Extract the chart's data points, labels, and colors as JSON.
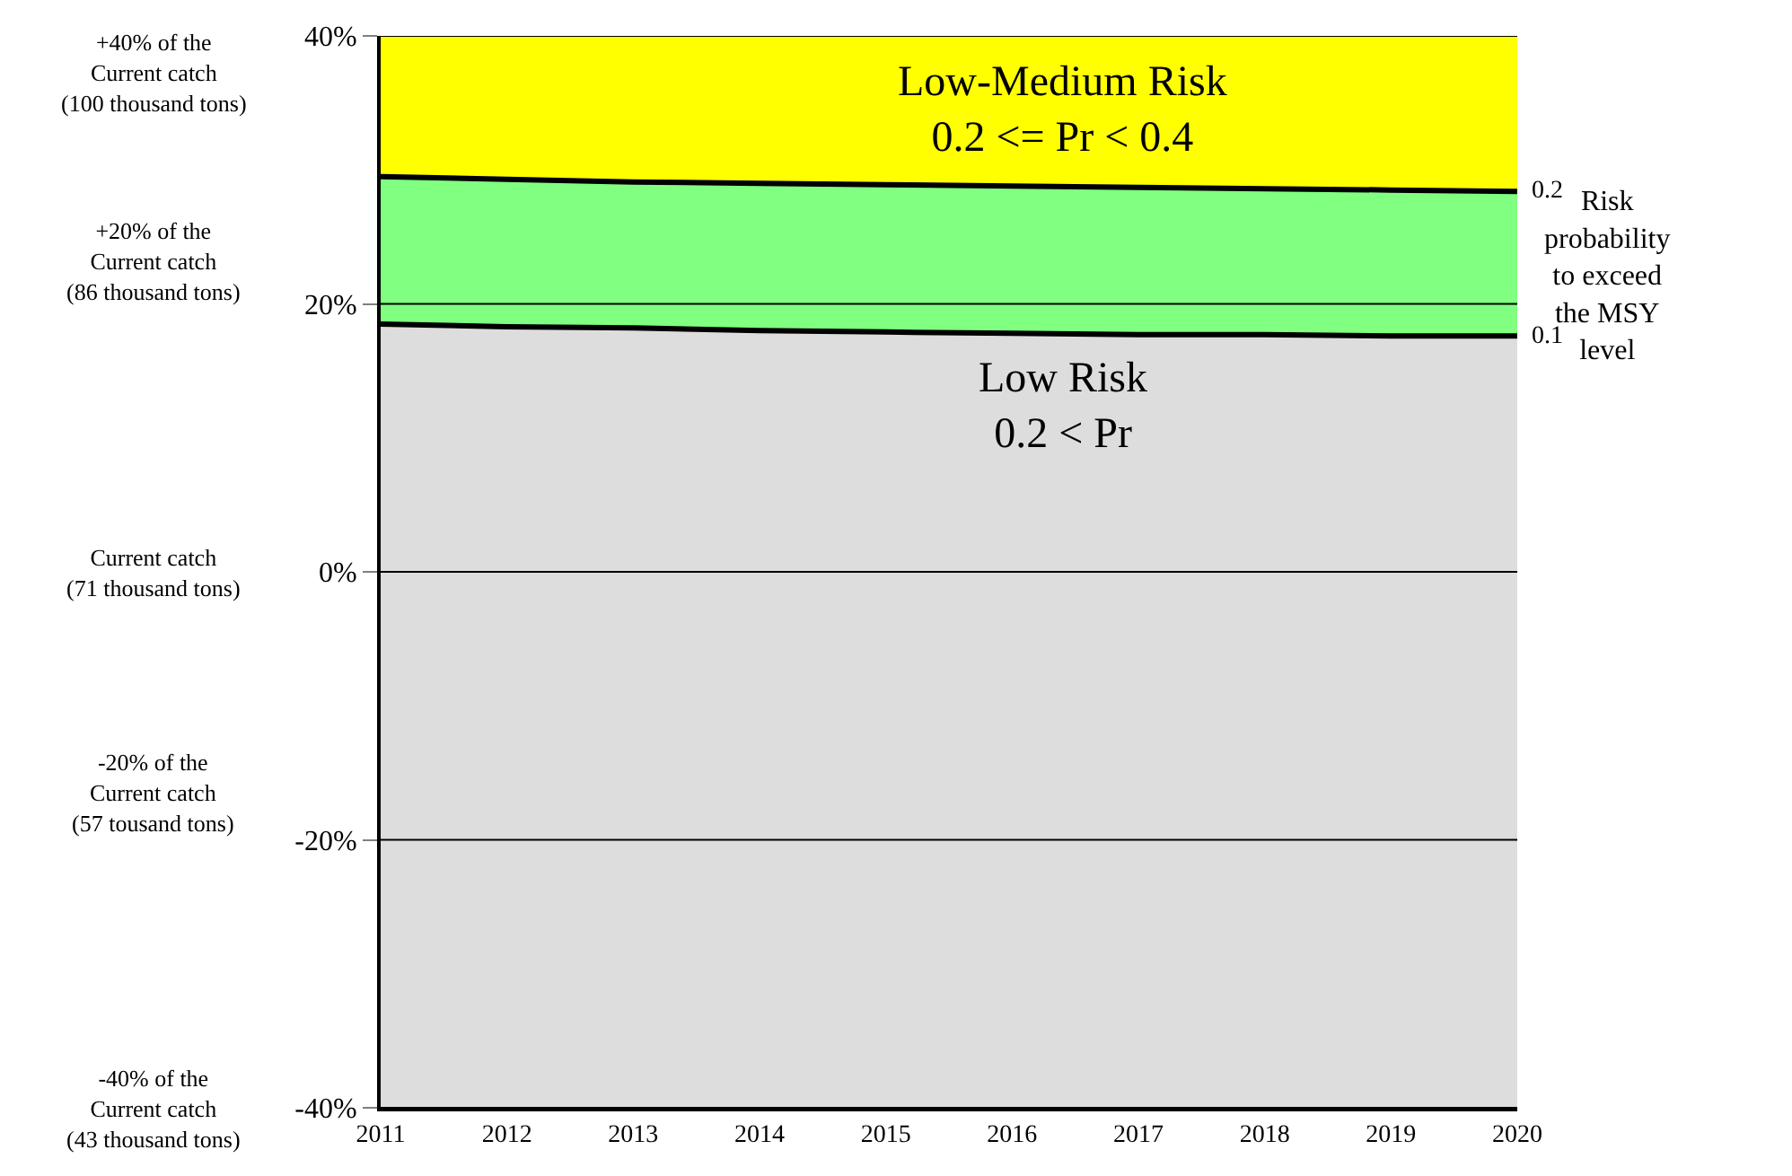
{
  "chart_data": {
    "type": "area",
    "x": [
      2011,
      2012,
      2013,
      2014,
      2015,
      2016,
      2017,
      2018,
      2019,
      2020
    ],
    "series": [
      {
        "name": "0.1",
        "color": "#dddddd",
        "values": [
          18.5,
          18.3,
          18.2,
          18.0,
          17.9,
          17.8,
          17.7,
          17.7,
          17.6,
          17.6
        ]
      },
      {
        "name": "0.2",
        "color": "#80ff80",
        "values": [
          29.5,
          29.3,
          29.1,
          29.0,
          28.9,
          28.8,
          28.7,
          28.6,
          28.5,
          28.4
        ]
      }
    ],
    "bands": [
      {
        "axis": "y",
        "from": 28.4,
        "to": 40,
        "color": "#ffff00"
      }
    ],
    "xlim": [
      2011,
      2020
    ],
    "xticks": [
      2011,
      2012,
      2013,
      2014,
      2015,
      2016,
      2017,
      2018,
      2019,
      2020
    ],
    "ylim": [
      -40,
      40
    ],
    "yticks": [
      {
        "value": -40,
        "label": "-40%"
      },
      {
        "value": -20,
        "label": "-20%"
      },
      {
        "value": 0,
        "label": "0%"
      },
      {
        "value": 20,
        "label": "20%"
      },
      {
        "value": 40,
        "label": "40%"
      }
    ],
    "annotations": [
      "-40% of the\nCurrent catch\n(43 thousand tons)",
      "-20% of the\nCurrent catch\n(57 tousand tons)",
      "Current catch\n(71 thousand tons)",
      "+20% of the\nCurrent catch\n(86 thousand tons)",
      "+40% of the\nCurrent catch\n(100 thousand tons)",
      "Low-Medium Risk\n0.2 <= Pr < 0.4",
      "Low Risk\n0.2 < Pr",
      "Risk\nprobability\nto exceed\nthe MSY\nlevel"
    ],
    "grid": "y",
    "legend": false,
    "marker": "none",
    "line_style": "solid"
  }
}
